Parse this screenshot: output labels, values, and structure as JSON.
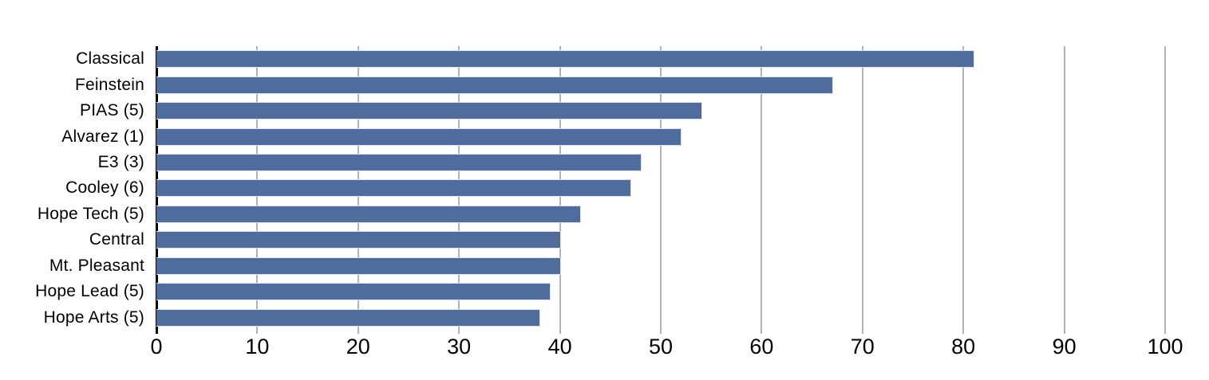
{
  "chart_data": {
    "type": "bar",
    "orientation": "horizontal",
    "title": "",
    "xlabel": "",
    "ylabel": "",
    "categories": [
      "Classical",
      "Feinstein",
      "PIAS (5)",
      "Alvarez (1)",
      "E3 (3)",
      "Cooley (6)",
      "Hope Tech (5)",
      "Central",
      "Mt. Pleasant",
      "Hope Lead (5)",
      "Hope Arts (5)"
    ],
    "values": [
      81,
      67,
      54,
      52,
      48,
      47,
      42,
      40,
      40,
      39,
      38
    ],
    "xlim": [
      0,
      100
    ],
    "xticks": [
      0,
      10,
      20,
      30,
      40,
      50,
      60,
      70,
      80,
      90,
      100
    ],
    "grid": "vertical-gridlines-on",
    "legend": "none",
    "colors": {
      "bar": "#4e6d9c",
      "bar_border": "#dce4f2",
      "gridline": "#b3b3b3",
      "axis_line": "#000000",
      "text": "#000000",
      "background": "#ffffff"
    }
  }
}
